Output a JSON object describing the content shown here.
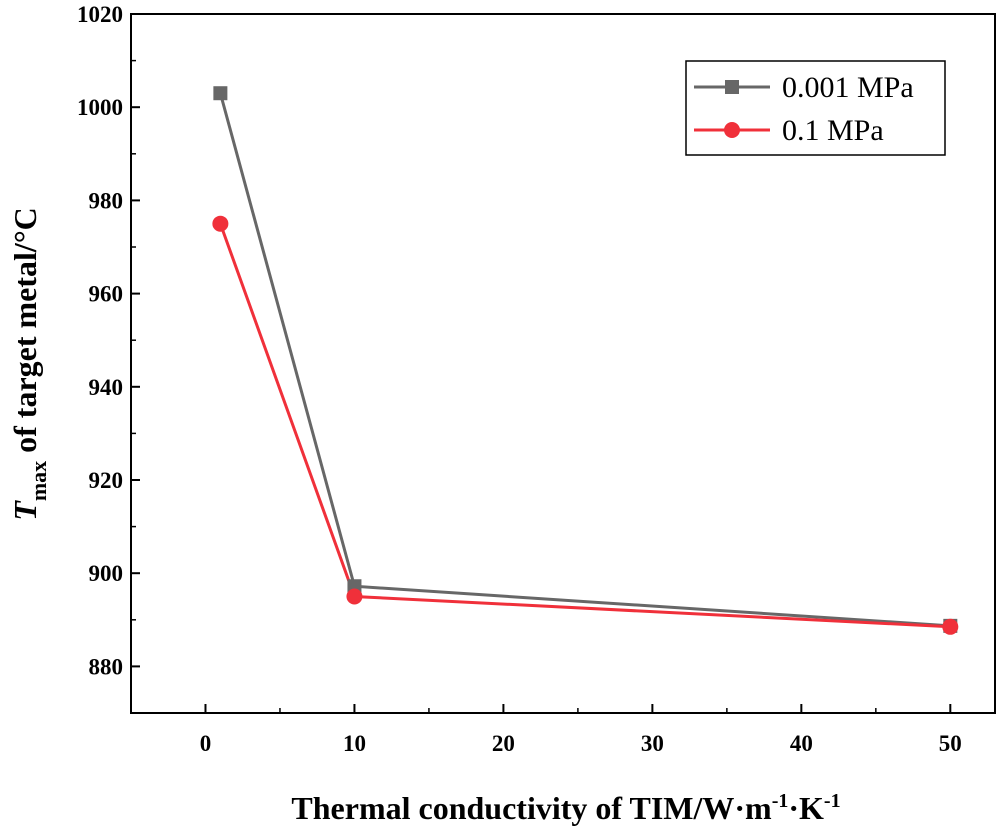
{
  "chart_data": {
    "type": "line",
    "xlabel": "Thermal conductivity of TIM/W·m-1·K-1",
    "xlabel_parts": {
      "main": "Thermal conductivity of TIM/W·m",
      "sup1": "-1",
      "mid": "·K",
      "sup2": "-1"
    },
    "ylabel": "Tmax of target metal/°C",
    "ylabel_parts": {
      "symbol": "T",
      "subscript": "max",
      "rest": " of target metal/°C"
    },
    "xlim": [
      -5,
      53
    ],
    "ylim": [
      870,
      1020
    ],
    "xticks": [
      0,
      10,
      20,
      30,
      40,
      50
    ],
    "yticks": [
      880,
      900,
      920,
      940,
      960,
      980,
      1000,
      1020
    ],
    "legend_position": "top-right",
    "series": [
      {
        "name": "0.001 MPa",
        "color": "#676767",
        "marker": "square",
        "x": [
          1,
          10,
          50
        ],
        "y": [
          1003,
          897.2,
          888.7
        ]
      },
      {
        "name": "0.1 MPa",
        "color": "#f0303a",
        "marker": "circle",
        "x": [
          1,
          10,
          50
        ],
        "y": [
          975,
          895,
          888.5
        ]
      }
    ]
  }
}
